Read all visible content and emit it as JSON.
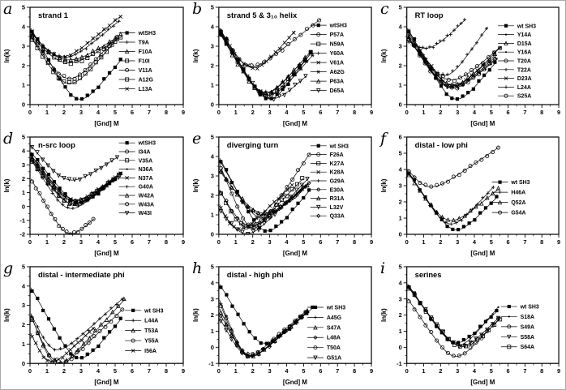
{
  "figure": {
    "background": "#ffffff",
    "ink": "#000000"
  },
  "chart_data": [
    {
      "type": "line",
      "panel": "a",
      "title": "strand 1",
      "xlabel": "[Gnd] M",
      "ylabel": "ln(k)",
      "xlim": [
        0,
        9
      ],
      "xticks": [
        0,
        1,
        2,
        3,
        4,
        5,
        6,
        7,
        8,
        9
      ],
      "ylim": [
        0,
        5
      ],
      "yticks": [
        0,
        1,
        2,
        3,
        4,
        5
      ],
      "legend_pos": {
        "x": 0.58,
        "y": 0.55
      },
      "series": [
        {
          "name": "wtSH3",
          "marker": "filled-square",
          "chevron": {
            "y0": 4.0,
            "xmin": 2.8,
            "ymin": 0.3,
            "xend": 5.4,
            "yend": 2.35
          }
        },
        {
          "name": "T9A",
          "marker": "plus",
          "chevron": {
            "y0": 3.75,
            "xmin": 1.8,
            "ymin": 2.45,
            "xend": 5.3,
            "yend": 4.35
          }
        },
        {
          "name": "F10A",
          "marker": "triangle-up",
          "chevron": {
            "y0": 3.7,
            "xmin": 1.9,
            "ymin": 2.35,
            "xend": 5.4,
            "yend": 3.6
          }
        },
        {
          "name": "F10I",
          "marker": "open-square",
          "chevron": {
            "y0": 3.6,
            "xmin": 1.9,
            "ymin": 2.2,
            "xend": 5.4,
            "yend": 3.5
          }
        },
        {
          "name": "V11A",
          "marker": "open-circle",
          "chevron": {
            "y0": 3.6,
            "xmin": 2.2,
            "ymin": 1.35,
            "xend": 5.2,
            "yend": 3.6
          }
        },
        {
          "name": "A12G",
          "marker": "open-square",
          "chevron": {
            "y0": 3.55,
            "xmin": 2.2,
            "ymin": 1.1,
            "xend": 5.2,
            "yend": 3.45
          }
        },
        {
          "name": "L13A",
          "marker": "x",
          "chevron": {
            "y0": 3.8,
            "xmin": 1.6,
            "ymin": 2.5,
            "xend": 5.4,
            "yend": 4.6
          }
        }
      ]
    },
    {
      "type": "line",
      "panel": "b",
      "title": "strand 5 & 3₁₀ helix",
      "xlabel": "[Gnd] M",
      "ylabel": "ln(k)",
      "xlim": [
        0,
        9
      ],
      "xticks": [
        0,
        1,
        2,
        3,
        4,
        5,
        6,
        7,
        8,
        9
      ],
      "ylim": [
        0,
        5
      ],
      "yticks": [
        0,
        1,
        2,
        3,
        4,
        5
      ],
      "legend_pos": {
        "x": 0.6,
        "y": 0.52
      },
      "series": [
        {
          "name": "wtSH3",
          "marker": "filled-square",
          "chevron": {
            "y0": 4.0,
            "xmin": 2.9,
            "ymin": 0.3,
            "xend": 5.5,
            "yend": 2.75
          }
        },
        {
          "name": "P57A",
          "marker": "open-circle",
          "chevron": {
            "y0": 4.0,
            "xmin": 1.6,
            "ymin": 2.05,
            "xend": 6.0,
            "yend": 4.4
          }
        },
        {
          "name": "N59A",
          "marker": "open-square",
          "chevron": {
            "y0": 3.9,
            "xmin": 2.7,
            "ymin": 0.5,
            "xend": 5.5,
            "yend": 2.7
          }
        },
        {
          "name": "Y60A",
          "marker": "plus",
          "chevron": {
            "y0": 3.85,
            "xmin": 2.6,
            "ymin": 0.65,
            "xend": 5.5,
            "yend": 2.8
          }
        },
        {
          "name": "V61A",
          "marker": "x",
          "chevron": {
            "y0": 3.9,
            "xmin": 1.9,
            "ymin": 1.9,
            "xend": 4.5,
            "yend": 3.8
          }
        },
        {
          "name": "A62G",
          "marker": "asterisk",
          "chevron": {
            "y0": 3.8,
            "xmin": 2.8,
            "ymin": 0.5,
            "xend": 5.6,
            "yend": 2.6
          }
        },
        {
          "name": "P63A",
          "marker": "triangle-up",
          "chevron": {
            "y0": 3.75,
            "xmin": 2.6,
            "ymin": 0.6,
            "xend": 5.5,
            "yend": 2.8
          }
        },
        {
          "name": "D65A",
          "marker": "triangle-down",
          "chevron": {
            "y0": 3.8,
            "xmin": 2.9,
            "ymin": 0.35,
            "xend": 5.2,
            "yend": 1.5
          }
        }
      ]
    },
    {
      "type": "line",
      "panel": "c",
      "title": "RT loop",
      "xlabel": "[Gnd] M",
      "ylabel": "ln(k)",
      "xlim": [
        0,
        9
      ],
      "xticks": [
        0,
        1,
        2,
        3,
        4,
        5,
        6,
        7,
        8,
        9
      ],
      "ylim": [
        0,
        5
      ],
      "yticks": [
        0,
        1,
        2,
        3,
        4,
        5
      ],
      "legend_pos": {
        "x": 0.6,
        "y": 0.55
      },
      "series": [
        {
          "name": "wt SH3",
          "marker": "filled-square",
          "chevron": {
            "y0": 4.0,
            "xmin": 2.8,
            "ymin": 0.3,
            "xend": 5.3,
            "yend": 2.2
          }
        },
        {
          "name": "Y14A",
          "marker": "dot",
          "chevron": {
            "y0": 3.6,
            "xmin": 2.5,
            "ymin": 0.95,
            "xend": 5.3,
            "yend": 2.5
          }
        },
        {
          "name": "D15A",
          "marker": "triangle-up",
          "chevron": {
            "y0": 3.7,
            "xmin": 2.5,
            "ymin": 1.05,
            "xend": 5.3,
            "yend": 2.6
          }
        },
        {
          "name": "Y16A",
          "marker": "dot",
          "chevron": {
            "y0": 3.6,
            "xmin": 2.4,
            "ymin": 0.9,
            "xend": 5.4,
            "yend": 2.4
          }
        },
        {
          "name": "T20A",
          "marker": "open-circle",
          "chevron": {
            "y0": 3.5,
            "xmin": 2.4,
            "ymin": 1.3,
            "xend": 5.6,
            "yend": 3.0
          }
        },
        {
          "name": "T22A",
          "marker": "plus",
          "chevron": {
            "y0": 3.8,
            "xmin": 2.2,
            "ymin": 1.5,
            "xend": 4.8,
            "yend": 4.0
          }
        },
        {
          "name": "D23A",
          "marker": "x",
          "chevron": {
            "y0": 3.9,
            "xmin": 2.6,
            "ymin": 1.0,
            "xend": 5.6,
            "yend": 3.0
          }
        },
        {
          "name": "L24A",
          "marker": "plus",
          "chevron": {
            "y0": 3.2,
            "xmin": 1.0,
            "ymin": 2.9,
            "xend": 3.5,
            "yend": 4.4
          }
        },
        {
          "name": "S25A",
          "marker": "open-circle",
          "chevron": {
            "y0": 3.55,
            "xmin": 2.5,
            "ymin": 0.9,
            "xend": 5.3,
            "yend": 2.4
          }
        }
      ]
    },
    {
      "type": "line",
      "panel": "d",
      "title": "n-src loop",
      "xlabel": "[Gnd] M",
      "ylabel": "ln(k)",
      "xlim": [
        0,
        9
      ],
      "xticks": [
        0,
        1,
        2,
        3,
        4,
        5,
        6,
        7,
        8,
        9
      ],
      "ylim": [
        -2,
        5
      ],
      "yticks": [
        -2,
        -1,
        0,
        1,
        2,
        3,
        4,
        5
      ],
      "legend_pos": {
        "x": 0.58,
        "y": 0.42
      },
      "series": [
        {
          "name": "wtSH3",
          "marker": "filled-square",
          "chevron": {
            "y0": 4.0,
            "xmin": 2.8,
            "ymin": 0.3,
            "xend": 5.4,
            "yend": 2.4
          }
        },
        {
          "name": "I34A",
          "marker": "open-circle",
          "chevron": {
            "y0": 3.6,
            "xmin": 2.4,
            "ymin": 0.45,
            "xend": 5.3,
            "yend": 2.3
          }
        },
        {
          "name": "V35A",
          "marker": "open-square",
          "chevron": {
            "y0": 3.5,
            "xmin": 2.3,
            "ymin": 0.25,
            "xend": 5.3,
            "yend": 2.3
          }
        },
        {
          "name": "N36A",
          "marker": "dot",
          "chevron": {
            "y0": 3.7,
            "xmin": 2.6,
            "ymin": 0.3,
            "xend": 5.4,
            "yend": 2.4
          }
        },
        {
          "name": "N37A",
          "marker": "x",
          "chevron": {
            "y0": 3.8,
            "xmin": 2.5,
            "ymin": 0.5,
            "xend": 5.4,
            "yend": 2.5
          }
        },
        {
          "name": "G40A",
          "marker": "plus",
          "chevron": {
            "y0": 3.5,
            "xmin": 2.2,
            "ymin": -0.1,
            "xend": 5.0,
            "yend": 2.0
          }
        },
        {
          "name": "W42A",
          "marker": "triangle-up",
          "chevron": {
            "y0": 3.6,
            "xmin": 2.4,
            "ymin": 0.2,
            "xend": 5.2,
            "yend": 2.2
          }
        },
        {
          "name": "W43A",
          "marker": "open-circle",
          "chevron": {
            "y0": 2.1,
            "xmin": 2.2,
            "ymin": -1.9,
            "xend": 3.8,
            "yend": -0.85
          }
        },
        {
          "name": "W43I",
          "marker": "triangle-down",
          "chevron": {
            "y0": 4.45,
            "xmin": 2.2,
            "ymin": 1.95,
            "xend": 5.2,
            "yend": 3.6
          }
        }
      ]
    },
    {
      "type": "line",
      "panel": "e",
      "title": "diverging turn",
      "xlabel": "[Gnd] M",
      "ylabel": "ln(k)",
      "xlim": [
        0,
        9
      ],
      "xticks": [
        0,
        1,
        2,
        3,
        4,
        5,
        6,
        7,
        8,
        9
      ],
      "ylim": [
        0,
        5
      ],
      "yticks": [
        0,
        1,
        2,
        3,
        4,
        5
      ],
      "legend_pos": {
        "x": 0.6,
        "y": 0.45
      },
      "series": [
        {
          "name": "wt SH3",
          "marker": "filled-square",
          "chevron": {
            "y0": 4.0,
            "xmin": 2.7,
            "ymin": 0.2,
            "xend": 5.4,
            "yend": 2.3
          }
        },
        {
          "name": "F26A",
          "marker": "open-circle",
          "chevron": {
            "y0": 3.7,
            "xmin": 1.9,
            "ymin": 0.35,
            "xend": 5.4,
            "yend": 4.2
          }
        },
        {
          "name": "K27A",
          "marker": "open-square",
          "chevron": {
            "y0": 2.35,
            "xmin": 1.5,
            "ymin": 0.4,
            "xend": 5.0,
            "yend": 2.9
          }
        },
        {
          "name": "K28A",
          "marker": "x",
          "chevron": {
            "y0": 1.55,
            "xmin": 0.9,
            "ymin": 0.35,
            "xend": 4.4,
            "yend": 2.6
          }
        },
        {
          "name": "G29A",
          "marker": "plus",
          "chevron": {
            "y0": 3.9,
            "xmin": 2.3,
            "ymin": 0.9,
            "xend": 5.2,
            "yend": 2.6
          }
        },
        {
          "name": "E30A",
          "marker": "open-diamond",
          "chevron": {
            "y0": 3.4,
            "xmin": 2.4,
            "ymin": 1.0,
            "xend": 5.2,
            "yend": 2.5
          }
        },
        {
          "name": "R31A",
          "marker": "triangle-up",
          "chevron": {
            "y0": 3.3,
            "xmin": 2.5,
            "ymin": 1.1,
            "xend": 5.3,
            "yend": 2.6
          }
        },
        {
          "name": "L32V",
          "marker": "triangle-down",
          "chevron": {
            "y0": 1.35,
            "xmin": 1.5,
            "ymin": 0.05,
            "xend": 5.3,
            "yend": 2.9
          }
        },
        {
          "name": "Q33A",
          "marker": "open-diamond",
          "chevron": {
            "y0": 2.3,
            "xmin": 1.6,
            "ymin": 0.5,
            "xend": 5.4,
            "yend": 2.7
          }
        }
      ]
    },
    {
      "type": "line",
      "panel": "f",
      "title": "distal - low phi",
      "xlabel": "[Gnd] M",
      "ylabel": "ln(k)",
      "xlim": [
        0,
        9
      ],
      "xticks": [
        0,
        1,
        2,
        3,
        4,
        5,
        6,
        7,
        8,
        9
      ],
      "ylim": [
        0,
        6
      ],
      "yticks": [
        0,
        1,
        2,
        3,
        4,
        5,
        6
      ],
      "legend_pos": {
        "x": 0.56,
        "y": 0.62
      },
      "series": [
        {
          "name": "wt SH3",
          "marker": "filled-square",
          "chevron": {
            "y0": 4.0,
            "xmin": 2.8,
            "ymin": 0.3,
            "xend": 5.4,
            "yend": 2.35
          }
        },
        {
          "name": "H46A",
          "marker": "plus",
          "chevron": {
            "y0": 3.95,
            "xmin": 2.5,
            "ymin": 0.65,
            "xend": 5.2,
            "yend": 3.0
          }
        },
        {
          "name": "Q52A",
          "marker": "triangle-up",
          "chevron": {
            "y0": 3.9,
            "xmin": 2.4,
            "ymin": 0.9,
            "xend": 5.5,
            "yend": 2.85
          }
        },
        {
          "name": "G54A",
          "marker": "open-circle",
          "chevron": {
            "y0": 4.0,
            "xmin": 1.1,
            "ymin": 3.0,
            "xend": 5.5,
            "yend": 5.4
          }
        }
      ]
    },
    {
      "type": "line",
      "panel": "g",
      "title": "distal - intermediate phi",
      "xlabel": "[Gnd] M",
      "ylabel": "ln(k)",
      "xlim": [
        0,
        9
      ],
      "xticks": [
        0,
        1,
        2,
        3,
        4,
        5,
        6,
        7,
        8,
        9
      ],
      "ylim": [
        0,
        5
      ],
      "yticks": [
        0,
        1,
        2,
        3,
        4,
        5
      ],
      "legend_pos": {
        "x": 0.62,
        "y": 0.66
      },
      "series": [
        {
          "name": "wt SH3",
          "marker": "filled-square",
          "chevron": {
            "y0": 4.0,
            "xmin": 2.8,
            "ymin": 0.3,
            "xend": 5.4,
            "yend": 2.35
          }
        },
        {
          "name": "L44A",
          "marker": "plus",
          "chevron": {
            "y0": 2.65,
            "xmin": 1.3,
            "ymin": 0.8,
            "xend": 5.5,
            "yend": 3.4
          }
        },
        {
          "name": "T53A",
          "marker": "triangle-up",
          "chevron": {
            "y0": 2.55,
            "xmin": 1.5,
            "ymin": 0.1,
            "xend": 5.6,
            "yend": 3.35
          }
        },
        {
          "name": "Y55A",
          "marker": "open-circle",
          "chevron": {
            "y0": 2.6,
            "xmin": 1.4,
            "ymin": 0.05,
            "xend": 5.5,
            "yend": 2.85
          }
        },
        {
          "name": "I56A",
          "marker": "x",
          "chevron": {
            "y0": 1.6,
            "xmin": 1.0,
            "ymin": 0.2,
            "xend": 3.8,
            "yend": 1.9
          }
        }
      ]
    },
    {
      "type": "line",
      "panel": "h",
      "title": "distal - high phi",
      "xlabel": "[Gnd] M",
      "ylabel": "ln(k)",
      "xlim": [
        0,
        9
      ],
      "xticks": [
        0,
        1,
        2,
        3,
        4,
        5,
        6,
        7,
        8,
        9
      ],
      "ylim": [
        -1,
        5
      ],
      "yticks": [
        -1,
        0,
        1,
        2,
        3,
        4,
        5
      ],
      "legend_pos": {
        "x": 0.58,
        "y": 0.68
      },
      "series": [
        {
          "name": "wt SH3",
          "marker": "filled-square",
          "chevron": {
            "y0": 4.0,
            "xmin": 2.5,
            "ymin": 0.3,
            "xend": 5.6,
            "yend": 2.5
          }
        },
        {
          "name": "A45G",
          "marker": "plus",
          "chevron": {
            "y0": 3.05,
            "xmin": 1.6,
            "ymin": -0.45,
            "xend": 5.3,
            "yend": 2.3
          }
        },
        {
          "name": "S47A",
          "marker": "triangle-up",
          "chevron": {
            "y0": 2.5,
            "xmin": 1.6,
            "ymin": -0.5,
            "xend": 5.3,
            "yend": 2.3
          }
        },
        {
          "name": "L48A",
          "marker": "open-diamond",
          "chevron": {
            "y0": 2.2,
            "xmin": 1.7,
            "ymin": -0.45,
            "xend": 5.3,
            "yend": 2.25
          }
        },
        {
          "name": "T50A",
          "marker": "open-circle",
          "chevron": {
            "y0": 2.9,
            "xmin": 1.5,
            "ymin": -0.4,
            "xend": 5.2,
            "yend": 2.3
          }
        },
        {
          "name": "G51A",
          "marker": "triangle-down",
          "chevron": {
            "y0": 1.9,
            "xmin": 1.6,
            "ymin": -0.5,
            "xend": 5.2,
            "yend": 2.2
          }
        }
      ]
    },
    {
      "type": "line",
      "panel": "i",
      "title": "serines",
      "xlabel": "[Gnd] M",
      "ylabel": "ln(k)",
      "xlim": [
        0,
        9
      ],
      "xticks": [
        0,
        1,
        2,
        3,
        4,
        5,
        6,
        7,
        8,
        9
      ],
      "ylim": [
        -1,
        5
      ],
      "yticks": [
        -1,
        0,
        1,
        2,
        3,
        4,
        5
      ],
      "legend_pos": {
        "x": 0.62,
        "y": 0.62
      },
      "series": [
        {
          "name": "wt SH3",
          "marker": "filled-square",
          "chevron": {
            "y0": 4.0,
            "xmin": 2.8,
            "ymin": 0.3,
            "xend": 5.4,
            "yend": 2.3
          }
        },
        {
          "name": "S18A",
          "marker": "dot",
          "chevron": {
            "y0": 4.0,
            "xmin": 3.0,
            "ymin": 0.15,
            "xend": 5.5,
            "yend": 2.6
          }
        },
        {
          "name": "S49A",
          "marker": "open-circle",
          "chevron": {
            "y0": 3.1,
            "xmin": 2.8,
            "ymin": -0.55,
            "xend": 5.5,
            "yend": 1.8
          }
        },
        {
          "name": "S58A",
          "marker": "triangle-down",
          "chevron": {
            "y0": 3.9,
            "xmin": 3.1,
            "ymin": 0.1,
            "xend": 5.5,
            "yend": 1.9
          }
        },
        {
          "name": "S64A",
          "marker": "open-square",
          "chevron": {
            "y0": 3.85,
            "xmin": 3.2,
            "ymin": 0.05,
            "xend": 5.6,
            "yend": 1.85
          }
        }
      ]
    }
  ]
}
